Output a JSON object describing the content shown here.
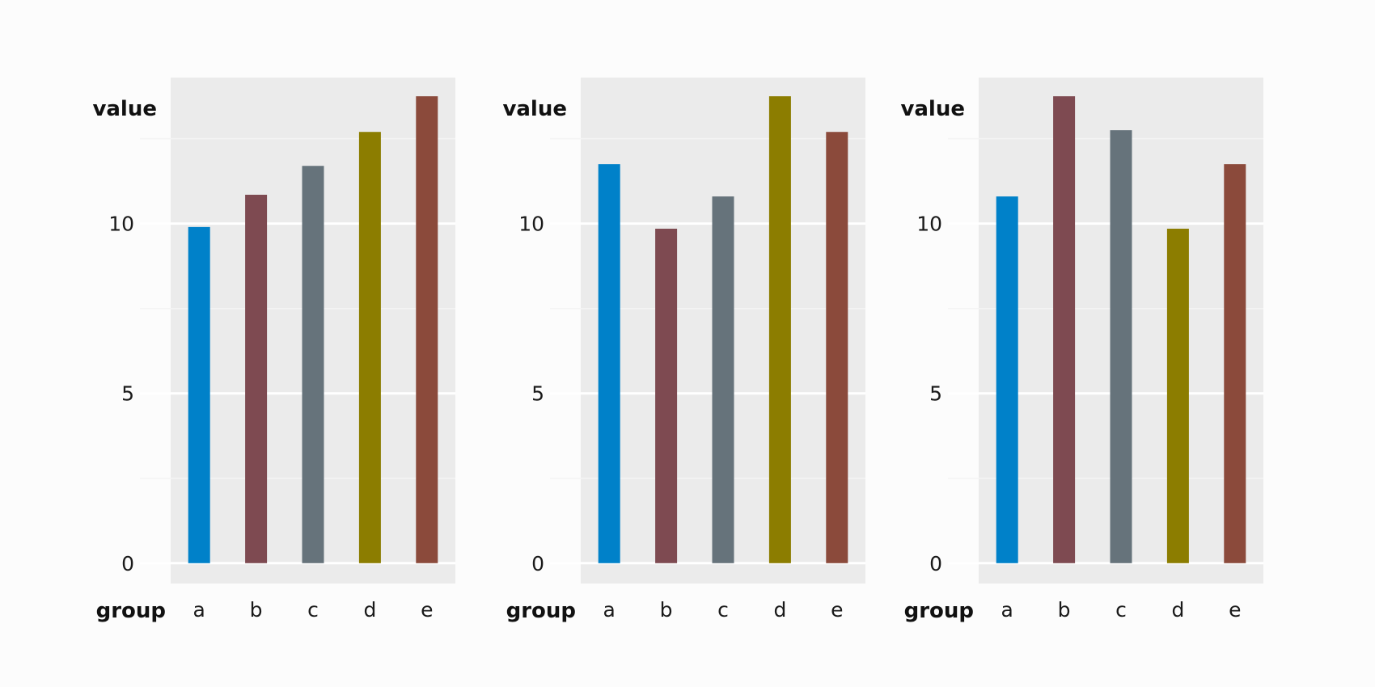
{
  "chart_data": [
    {
      "type": "bar",
      "categories": [
        "a",
        "b",
        "c",
        "d",
        "e"
      ],
      "values": [
        9.9,
        10.85,
        11.7,
        12.7,
        13.75
      ],
      "colors": [
        "#0081c9",
        "#7e4a51",
        "#66737b",
        "#8c7d00",
        "#8b4a3b"
      ],
      "xlabel": "group",
      "ylabel": "value",
      "yticks": [
        0,
        5,
        10
      ],
      "ylim": [
        -0.6,
        14.3
      ],
      "grid": true
    },
    {
      "type": "bar",
      "categories": [
        "a",
        "b",
        "c",
        "d",
        "e"
      ],
      "values": [
        11.75,
        9.85,
        10.8,
        13.75,
        12.7
      ],
      "colors": [
        "#0081c9",
        "#7e4a51",
        "#66737b",
        "#8c7d00",
        "#8b4a3b"
      ],
      "xlabel": "group",
      "ylabel": "value",
      "yticks": [
        0,
        5,
        10
      ],
      "ylim": [
        -0.6,
        14.3
      ],
      "grid": true
    },
    {
      "type": "bar",
      "categories": [
        "a",
        "b",
        "c",
        "d",
        "e"
      ],
      "values": [
        10.8,
        13.75,
        12.75,
        9.85,
        11.75
      ],
      "colors": [
        "#0081c9",
        "#7e4a51",
        "#66737b",
        "#8c7d00",
        "#8b4a3b"
      ],
      "xlabel": "group",
      "ylabel": "value",
      "yticks": [
        0,
        5,
        10
      ],
      "ylim": [
        -0.6,
        14.3
      ],
      "grid": true
    }
  ]
}
